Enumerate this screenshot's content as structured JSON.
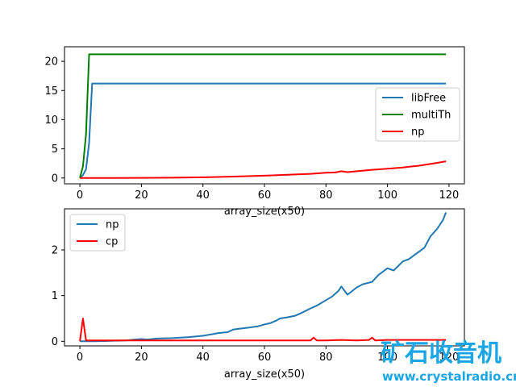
{
  "colors": {
    "libFree": "#1f77b4",
    "multiTh": "#008000",
    "np_top": "#ff0000",
    "np_bottom": "#1f77b4",
    "cp": "#ff0000"
  },
  "watermark": {
    "chinese": "矿石收音机",
    "url": "www.crystalradio.cn"
  },
  "chart_data": [
    {
      "type": "line",
      "xlabel": "array_size(x50)",
      "ylabel": "",
      "xlim": [
        -5,
        125
      ],
      "ylim": [
        -1,
        22.5
      ],
      "xticks": [
        0,
        20,
        40,
        60,
        80,
        100,
        120
      ],
      "yticks": [
        0,
        5,
        10,
        15,
        20
      ],
      "legend": "center-right",
      "grid": false,
      "series": [
        {
          "name": "libFree",
          "x": [
            0,
            1,
            2,
            3,
            4,
            5,
            119
          ],
          "values": [
            0,
            0.5,
            1.5,
            6,
            16.2,
            16.2,
            16.2
          ]
        },
        {
          "name": "multiTh",
          "x": [
            0,
            1,
            2,
            3,
            119
          ],
          "values": [
            0,
            2,
            7.5,
            21.2,
            21.2
          ]
        },
        {
          "name": "np",
          "x": [
            0,
            10,
            20,
            30,
            40,
            50,
            60,
            65,
            70,
            75,
            80,
            83,
            85,
            87,
            90,
            95,
            100,
            105,
            110,
            115,
            119
          ],
          "values": [
            0,
            0,
            0.02,
            0.05,
            0.12,
            0.25,
            0.4,
            0.5,
            0.6,
            0.72,
            0.9,
            0.95,
            1.15,
            1.0,
            1.15,
            1.4,
            1.6,
            1.8,
            2.1,
            2.5,
            2.85
          ]
        }
      ]
    },
    {
      "type": "line",
      "xlabel": "array_size(x50)",
      "ylabel": "",
      "xlim": [
        -5,
        125
      ],
      "ylim": [
        -0.1,
        2.9
      ],
      "xticks": [
        0,
        20,
        40,
        60,
        80,
        100,
        120
      ],
      "yticks": [
        0,
        1,
        2
      ],
      "legend": "top-left",
      "grid": false,
      "series": [
        {
          "name": "np",
          "x": [
            0,
            5,
            10,
            15,
            18,
            20,
            22,
            25,
            30,
            35,
            40,
            45,
            48,
            50,
            55,
            58,
            60,
            62,
            64,
            65,
            67,
            70,
            72,
            75,
            77,
            80,
            82,
            84,
            85,
            87,
            90,
            92,
            95,
            97,
            100,
            102,
            105,
            107,
            110,
            112,
            114,
            116,
            118,
            119
          ],
          "values": [
            0,
            0,
            0.01,
            0.02,
            0.04,
            0.05,
            0.04,
            0.06,
            0.07,
            0.09,
            0.12,
            0.18,
            0.2,
            0.26,
            0.3,
            0.33,
            0.37,
            0.4,
            0.46,
            0.5,
            0.52,
            0.56,
            0.62,
            0.72,
            0.78,
            0.9,
            0.98,
            1.1,
            1.2,
            1.02,
            1.18,
            1.25,
            1.3,
            1.45,
            1.6,
            1.55,
            1.75,
            1.8,
            1.95,
            2.05,
            2.3,
            2.45,
            2.65,
            2.82
          ]
        },
        {
          "name": "cp",
          "x": [
            0,
            1,
            2,
            10,
            20,
            40,
            60,
            75,
            76,
            77,
            80,
            85,
            90,
            94,
            95,
            96,
            100,
            110,
            119
          ],
          "values": [
            0,
            0.5,
            0.02,
            0.02,
            0.02,
            0.02,
            0.02,
            0.02,
            0.08,
            0.02,
            0.02,
            0.03,
            0.02,
            0.03,
            0.08,
            0.02,
            0.03,
            0.03,
            0.03
          ]
        }
      ]
    }
  ]
}
